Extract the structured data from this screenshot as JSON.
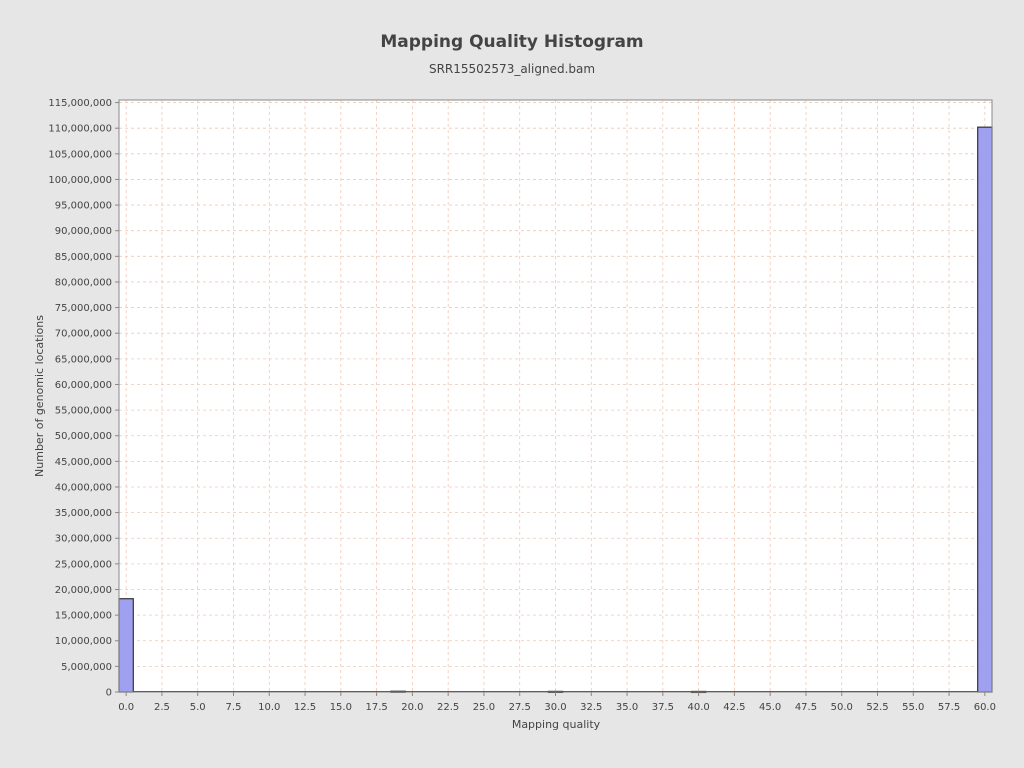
{
  "chart_data": {
    "type": "bar",
    "title": "Mapping Quality Histogram",
    "subtitle": "SRR15502573_aligned.bam",
    "xlabel": "Mapping quality",
    "ylabel": "Number of genomic locations",
    "xlim": [
      -0.5,
      60.5
    ],
    "ylim": [
      0,
      115500000
    ],
    "x_ticks": [
      "0.0",
      "2.5",
      "5.0",
      "7.5",
      "10.0",
      "12.5",
      "15.0",
      "17.5",
      "20.0",
      "22.5",
      "25.0",
      "27.5",
      "30.0",
      "32.5",
      "35.0",
      "37.5",
      "40.0",
      "42.5",
      "45.0",
      "47.5",
      "50.0",
      "52.5",
      "55.0",
      "57.5",
      "60.0"
    ],
    "y_ticks": [
      "0",
      "5,000,000",
      "10,000,000",
      "15,000,000",
      "20,000,000",
      "25,000,000",
      "30,000,000",
      "35,000,000",
      "40,000,000",
      "45,000,000",
      "50,000,000",
      "55,000,000",
      "60,000,000",
      "65,000,000",
      "70,000,000",
      "75,000,000",
      "80,000,000",
      "85,000,000",
      "90,000,000",
      "95,000,000",
      "100,000,000",
      "105,000,000",
      "110,000,000",
      "115,000,000"
    ],
    "grid": true,
    "bar_color": "#a0a0f0",
    "bar_edge_color": "#333333",
    "grid_color": "#f0c8b4",
    "x": [
      0,
      19,
      30,
      40,
      60
    ],
    "values": [
      18200000,
      150000,
      120000,
      110000,
      110200000
    ]
  }
}
